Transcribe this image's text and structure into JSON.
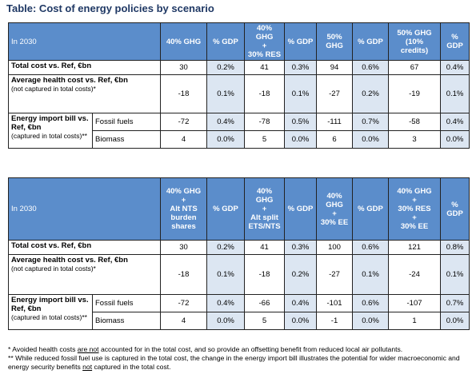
{
  "title": "Table: Cost of energy policies by scenario",
  "tables": [
    {
      "header": [
        "In 2030",
        "40% GHG",
        "% GDP",
        "40% GHG\n+\n30% RES",
        "% GDP",
        "50% GHG",
        "% GDP",
        "50% GHG\n(10%\ncredits)",
        "% GDP"
      ],
      "total": {
        "label": "Total cost vs. Ref, €bn",
        "values": [
          30,
          "0.2%",
          41,
          "0.3%",
          94,
          "0.6%",
          67,
          "0.4%"
        ]
      },
      "health": {
        "label": "Average health cost vs. Ref, €bn",
        "note": "(not captured in total costs)*",
        "values": [
          -18,
          "0.1%",
          -18,
          "0.1%",
          -27,
          "0.2%",
          -19,
          "0.1%"
        ]
      },
      "imports": {
        "label": "Energy import bill vs. Ref, €bn",
        "note": "(captured in total costs)**",
        "rows": [
          {
            "label": "Fossil fuels",
            "values": [
              -72,
              "0.4%",
              -78,
              "0.5%",
              -111,
              "0.7%",
              -58,
              "0.4%"
            ]
          },
          {
            "label": "Biomass",
            "values": [
              4,
              "0.0%",
              5,
              "0.0%",
              6,
              "0.0%",
              3,
              "0.0%"
            ]
          }
        ]
      }
    },
    {
      "header": [
        "In 2030",
        "40% GHG\n+\nAlt NTS\nburden\nshares",
        "% GDP",
        "40% GHG\n+\nAlt split\nETS/NTS",
        "% GDP",
        "40% GHG\n+\n30% EE",
        "% GDP",
        "40% GHG\n+\n30% RES\n+\n30% EE",
        "% GDP"
      ],
      "total": {
        "label": "Total cost vs. Ref, €bn",
        "values": [
          30,
          "0.2%",
          41,
          "0.3%",
          100,
          "0.6%",
          121,
          "0.8%"
        ]
      },
      "health": {
        "label": "Average health cost vs. Ref, €bn",
        "note": "(not captured in total costs)*",
        "values": [
          -18,
          "0.1%",
          -18,
          "0.2%",
          -27,
          "0.1%",
          -24,
          "0.1%"
        ]
      },
      "imports": {
        "label": "Energy import bill vs. Ref, €bn",
        "note": "(captured in total costs)**",
        "rows": [
          {
            "label": "Fossil fuels",
            "values": [
              -72,
              "0.4%",
              -66,
              "0.4%",
              -101,
              "0.6%",
              -107,
              "0.7%"
            ]
          },
          {
            "label": "Biomass",
            "values": [
              4,
              "0.0%",
              5,
              "0.0%",
              -1,
              "0.0%",
              1,
              "0.0%"
            ]
          }
        ]
      }
    }
  ],
  "footnotes": [
    [
      "* Avoided health costs ",
      "are not",
      " accounted for in the total cost, and so provide an offsetting benefit from reduced local air pollutants."
    ],
    [
      "** While reduced fossil fuel use is captured in the total cost, the change in the energy import bill illustrates the potential for wider macroeconomic and energy security benefits ",
      "not",
      " captured in the total cost."
    ]
  ]
}
